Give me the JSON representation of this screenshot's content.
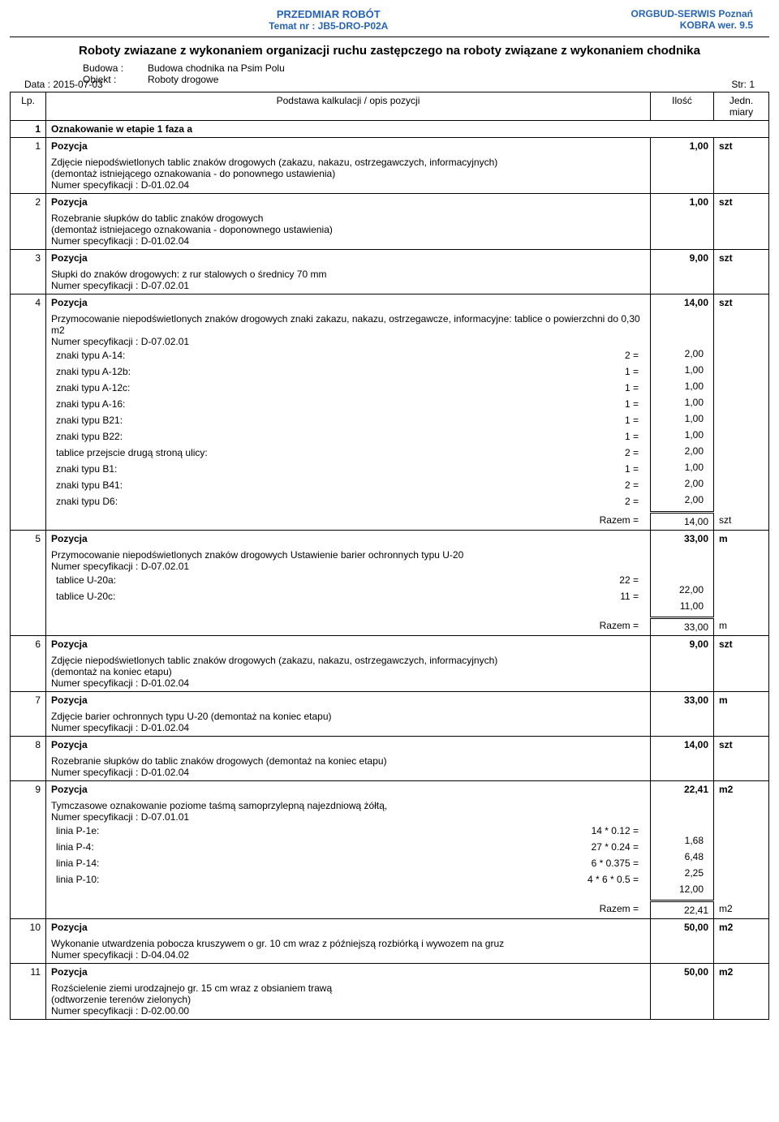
{
  "header": {
    "center_line1": "PRZEDMIAR ROBÓT",
    "center_line2": "Temat nr : JB5-DRO-P02A",
    "right_line1": "ORGBUD-SERWIS Poznań",
    "right_line2": "KOBRA wer. 9.5"
  },
  "title": "Roboty zwiazane z wykonaniem organizacji ruchu zastępczego na roboty związane z wykonaniem chodnika",
  "meta": {
    "budowa_label": "Budowa :",
    "budowa_value": "Budowa chodnika na Psim Polu",
    "obiekt_label": "Obiekt :",
    "obiekt_value": "Roboty drogowe",
    "date_label": "Data : 2015-07-03",
    "page_label": "Str: 1"
  },
  "columns": {
    "lp": "Lp.",
    "desc": "Podstawa kalkulacji / opis pozycji",
    "qty": "Ilość",
    "unit": "Jedn. miary"
  },
  "section": {
    "num": "1",
    "title": "Oznakowanie w etapie 1 faza a"
  },
  "pos": [
    {
      "num": "1",
      "title": "Pozycja",
      "qty": "1,00",
      "unit": "szt",
      "lines": [
        "Zdjęcie niepodświetlonych tablic znaków drogowych (zakazu, nakazu, ostrzegawczych, informacyjnych)",
        "(demontaż istniejącego oznakowania - do ponownego ustawienia)",
        "Numer specyfikacji :  D-01.02.04"
      ]
    },
    {
      "num": "2",
      "title": "Pozycja",
      "qty": "1,00",
      "unit": "szt",
      "lines": [
        "Rozebranie słupków do tablic znaków drogowych",
        "(demontaż istniejacego oznakowania - doponownego ustawienia)",
        "Numer specyfikacji :  D-01.02.04"
      ]
    },
    {
      "num": "3",
      "title": "Pozycja",
      "qty": "9,00",
      "unit": "szt",
      "lines": [
        "Słupki do znaków drogowych: z rur stalowych o średnicy 70 mm",
        "Numer specyfikacji :  D-07.02.01"
      ]
    },
    {
      "num": "4",
      "title": "Pozycja",
      "qty": "14,00",
      "unit": "szt",
      "lines": [
        "Przymocowanie niepodświetlonych znaków drogowych znaki zakazu, nakazu, ostrzegawcze, informacyjne: tablice o powierzchni do 0,30 m2",
        "Numer specyfikacji :  D-07.02.01"
      ],
      "sub": [
        {
          "label": "znaki typu A-14:",
          "expr": "2 =",
          "val": "2,00"
        },
        {
          "label": "znaki typu A-12b:",
          "expr": "1 =",
          "val": "1,00"
        },
        {
          "label": "znaki typu A-12c:",
          "expr": "1 =",
          "val": "1,00"
        },
        {
          "label": "znaki typu A-16:",
          "expr": "1 =",
          "val": "1,00"
        },
        {
          "label": "znaki typu B21:",
          "expr": "1 =",
          "val": "1,00"
        },
        {
          "label": "znaki typu B22:",
          "expr": "1 =",
          "val": "1,00"
        },
        {
          "label": "tablice przejscie drugą stroną ulicy:",
          "expr": "2 =",
          "val": "2,00"
        },
        {
          "label": "znaki typu B1:",
          "expr": "1 =",
          "val": "1,00"
        },
        {
          "label": "znaki typu B41:",
          "expr": "2 =",
          "val": "2,00"
        },
        {
          "label": "znaki typu D6:",
          "expr": "2 =",
          "val": "2,00"
        }
      ],
      "razem": {
        "label": "Razem  =",
        "val": "14,00",
        "unit": "szt"
      }
    },
    {
      "num": "5",
      "title": "Pozycja",
      "qty": "33,00",
      "unit": "m",
      "lines": [
        "Przymocowanie niepodświetlonych znaków drogowych  Ustawienie barier ochronnych typu U-20",
        "Numer specyfikacji :  D-07.02.01"
      ],
      "sub": [
        {
          "label": "tablice U-20a:",
          "expr": "22 =",
          "val": "22,00"
        },
        {
          "label": "tablice U-20c:",
          "expr": "11 =",
          "val": "11,00"
        }
      ],
      "razem": {
        "label": "Razem  =",
        "val": "33,00",
        "unit": "m"
      }
    },
    {
      "num": "6",
      "title": "Pozycja",
      "qty": "9,00",
      "unit": "szt",
      "lines": [
        "Zdjęcie niepodświetlonych tablic znaków drogowych (zakazu, nakazu, ostrzegawczych, informacyjnych)",
        "(demontaż na koniec etapu)",
        "Numer specyfikacji :  D-01.02.04"
      ]
    },
    {
      "num": "7",
      "title": "Pozycja",
      "qty": "33,00",
      "unit": "m",
      "lines": [
        "Zdjęcie barier ochronnych typu U-20  (demontaż na koniec etapu)",
        "Numer specyfikacji :  D-01.02.04"
      ]
    },
    {
      "num": "8",
      "title": "Pozycja",
      "qty": "14,00",
      "unit": "szt",
      "lines": [
        "Rozebranie słupków do tablic znaków drogowych  (demontaż na koniec etapu)",
        "Numer specyfikacji :  D-01.02.04"
      ]
    },
    {
      "num": "9",
      "title": "Pozycja",
      "qty": "22,41",
      "unit": "m2",
      "lines": [
        "Tymczasowe oznakowanie poziome taśmą samoprzylepną najezdniową żółtą,",
        "Numer specyfikacji :  D-07.01.01"
      ],
      "sub": [
        {
          "label": "linia P-1e:",
          "expr": "14 * 0.12 =",
          "val": "1,68"
        },
        {
          "label": "linia P-4:",
          "expr": "27 * 0.24 =",
          "val": "6,48"
        },
        {
          "label": "linia P-14:",
          "expr": "6 * 0.375 =",
          "val": "2,25"
        },
        {
          "label": "linia P-10:",
          "expr": "4 * 6 * 0.5 =",
          "val": "12,00"
        }
      ],
      "razem": {
        "label": "Razem  =",
        "val": "22,41",
        "unit": "m2"
      }
    },
    {
      "num": "10",
      "title": "Pozycja",
      "qty": "50,00",
      "unit": "m2",
      "lines": [
        "Wykonanie utwardzenia pobocza kruszywem o gr. 10 cm wraz z późniejszą  rozbiórką i wywozem na gruz",
        "Numer specyfikacji :  D-04.04.02"
      ]
    },
    {
      "num": "11",
      "title": "Pozycja",
      "qty": "50,00",
      "unit": "m2",
      "lines": [
        "Rozścielenie ziemi urodzajnejo gr. 15 cm wraz z obsianiem trawą",
        "(odtworzenie terenów zielonych)",
        "Numer specyfikacji :  D-02.00.00"
      ]
    }
  ]
}
